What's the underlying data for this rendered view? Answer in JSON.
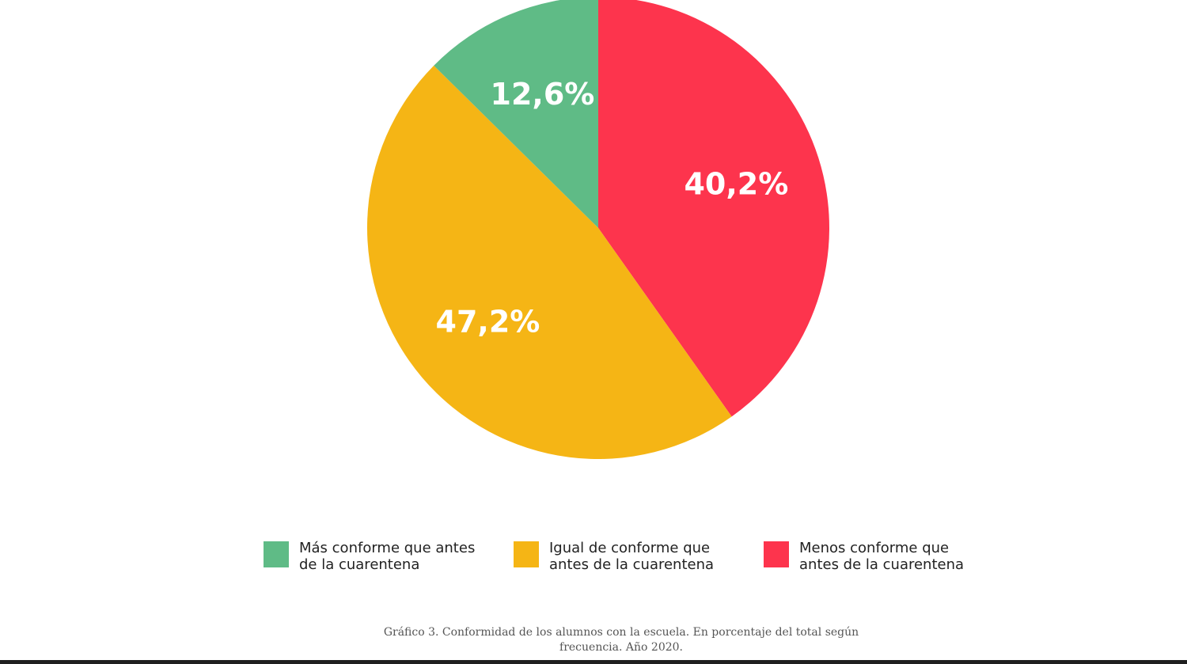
{
  "chart_data": {
    "type": "pie",
    "title": "",
    "slices": [
      {
        "label": "Menos conforme que antes de la cuarentena",
        "value": 40.2,
        "display": "40,2%",
        "color": "#fd344d"
      },
      {
        "label": "Igual de conforme que antes de la cuarentena",
        "value": 47.2,
        "display": "47,2%",
        "color": "#f5b515"
      },
      {
        "label": "Más conforme que antes de la cuarentena",
        "value": 12.6,
        "display": "12,6%",
        "color": "#5fbb86"
      }
    ],
    "start_angle_deg": 0,
    "direction": "clockwise"
  },
  "legend": {
    "items": [
      {
        "label": "Más conforme que antes de la cuarentena",
        "color": "#5fbb86"
      },
      {
        "label": "Igual de conforme que antes de la cuarentena",
        "color": "#f5b515"
      },
      {
        "label": "Menos conforme que antes de la cuarentena",
        "color": "#fd344d"
      }
    ]
  },
  "caption": "Gráfico 3. Conformidad de los alumnos con la escuela. En porcentaje del total según frecuencia. Año 2020."
}
